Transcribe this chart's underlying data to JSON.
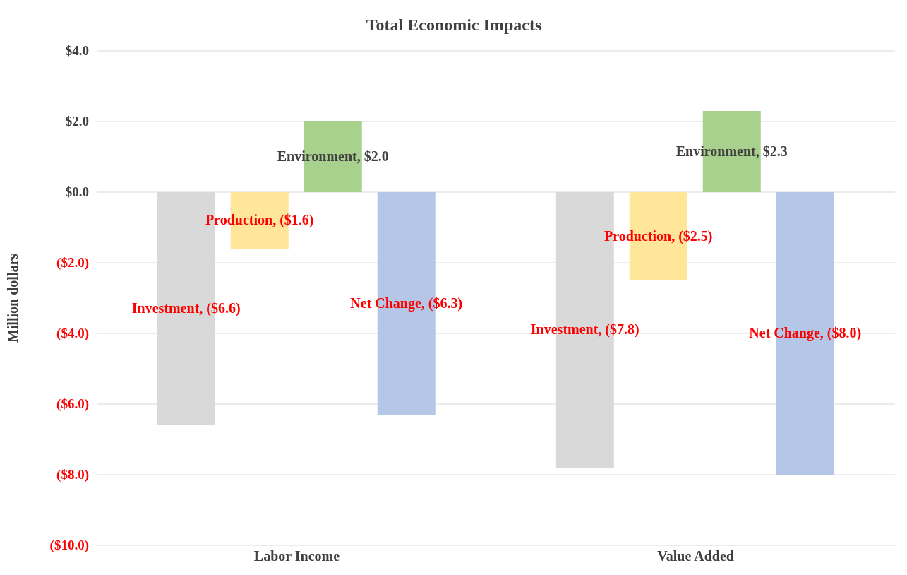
{
  "chart_data": {
    "type": "bar",
    "title": "Total Economic Impacts",
    "ylabel": "Million dollars",
    "categories": [
      "Labor Income",
      "Value Added"
    ],
    "series": [
      {
        "color": "#d9d9d9",
        "values": [
          -6.6,
          -7.8
        ],
        "value_labels": [
          "Investment, ($6.6)",
          "Investment, ($7.8)"
        ]
      },
      {
        "color": "#ffe699",
        "values": [
          -1.6,
          -2.5
        ],
        "value_labels": [
          "Production, ($1.6)",
          "Production, ($2.5)"
        ]
      },
      {
        "color": "#a9d18e",
        "values": [
          2.0,
          2.3
        ],
        "value_labels": [
          "Environment, $2.0",
          "Environment, $2.3"
        ]
      },
      {
        "color": "#b4c7e7",
        "values": [
          -6.3,
          -8.0
        ],
        "value_labels": [
          "Net Change, ($6.3)",
          "Net Change, ($8.0)"
        ]
      }
    ],
    "ylim": [
      -10,
      4
    ],
    "yticks": [
      {
        "value": -10,
        "label": "($10.0)"
      },
      {
        "value": -8,
        "label": "($8.0)"
      },
      {
        "value": -6,
        "label": "($6.0)"
      },
      {
        "value": -4,
        "label": "($4.0)"
      },
      {
        "value": -2,
        "label": "($2.0)"
      },
      {
        "value": 0,
        "label": "$0.0"
      },
      {
        "value": 2,
        "label": "$2.0"
      },
      {
        "value": 4,
        "label": "$4.0"
      }
    ],
    "grid": "y",
    "legend": false
  }
}
